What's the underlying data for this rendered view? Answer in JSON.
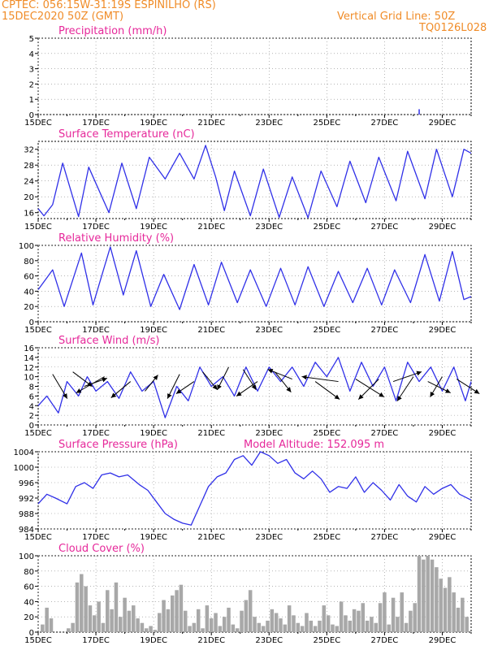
{
  "header": {
    "line1": "CPTEC:   056:15W-31:19S   ESPINILHO (RS)",
    "line2": "15DEC2020 50Z (GMT)",
    "grid_note": "Vertical Grid Line: 50Z",
    "code": "TQ0126L028"
  },
  "colors": {
    "line": "#3030e8",
    "title": "#e6289a",
    "header": "#f08c28",
    "bars": "#a8a8a8"
  },
  "x_ticks": [
    "15DEC",
    "17DEC",
    "19DEC",
    "21DEC",
    "23DEC",
    "25DEC",
    "27DEC",
    "29DEC"
  ],
  "chart_data": [
    {
      "id": "precip",
      "type": "bar",
      "title": "Precipitation (mm/h)",
      "yticks": [
        0,
        1,
        2,
        3,
        4,
        5
      ],
      "ylim": [
        0,
        5
      ],
      "xlim": [
        0,
        15
      ],
      "x": [
        13.2
      ],
      "values": [
        0.35
      ]
    },
    {
      "id": "temp",
      "type": "line",
      "title": "Surface Temperature (nC)",
      "yticks": [
        16,
        20,
        24,
        28,
        32
      ],
      "ylim": [
        14.5,
        34
      ],
      "xlim": [
        0,
        15
      ],
      "series": [
        {
          "x": [
            0,
            0.2,
            0.5,
            0.85,
            1.4,
            1.75,
            2.45,
            2.9,
            3.4,
            3.85,
            4.4,
            4.9,
            5.4,
            5.8,
            6.15,
            6.45,
            6.8,
            7.35,
            7.8,
            8.35,
            8.8,
            9.35,
            9.8,
            10.35,
            10.8,
            11.35,
            11.8,
            12.4,
            12.8,
            13.4,
            13.8,
            14.35,
            14.75,
            15
          ],
          "y": [
            17,
            15.2,
            18,
            28.5,
            15,
            27.5,
            16,
            28.5,
            17,
            30,
            24.5,
            31,
            24.5,
            33,
            25,
            16.5,
            26.5,
            15.2,
            27,
            14.8,
            25,
            14.7,
            26.5,
            17.5,
            29,
            18.5,
            30,
            19,
            31.5,
            19.5,
            32,
            20,
            32,
            31
          ]
        }
      ]
    },
    {
      "id": "rh",
      "type": "line",
      "title": "Relative Humidity (%)",
      "yticks": [
        0,
        20,
        40,
        60,
        80,
        100
      ],
      "ylim": [
        0,
        100
      ],
      "xlim": [
        0,
        15
      ],
      "series": [
        {
          "x": [
            0,
            0.5,
            0.9,
            1.5,
            1.9,
            2.5,
            2.95,
            3.4,
            3.9,
            4.35,
            4.9,
            5.4,
            5.9,
            6.35,
            6.9,
            7.35,
            7.9,
            8.4,
            8.9,
            9.35,
            9.9,
            10.4,
            10.9,
            11.4,
            11.9,
            12.35,
            12.9,
            13.4,
            13.9,
            14.35,
            14.75,
            15
          ],
          "y": [
            42,
            68,
            20,
            90,
            22,
            98,
            35,
            93,
            20,
            62,
            16,
            75,
            22,
            78,
            25,
            68,
            20,
            70,
            22,
            72,
            20,
            66,
            25,
            70,
            22,
            68,
            25,
            88,
            27,
            92,
            29,
            33
          ]
        }
      ]
    },
    {
      "id": "wind",
      "type": "line",
      "title": "Surface Wind (m/s)",
      "yticks": [
        0,
        2,
        4,
        6,
        8,
        10,
        12,
        14,
        16
      ],
      "ylim": [
        0,
        16
      ],
      "xlim": [
        0,
        15
      ],
      "series": [
        {
          "x": [
            0,
            0.3,
            0.7,
            1.0,
            1.4,
            1.7,
            2.0,
            2.4,
            2.8,
            3.2,
            3.6,
            4.0,
            4.4,
            4.8,
            5.2,
            5.6,
            6.0,
            6.4,
            6.8,
            7.2,
            7.6,
            8.0,
            8.4,
            8.8,
            9.2,
            9.6,
            10.0,
            10.4,
            10.8,
            11.2,
            11.6,
            12.0,
            12.4,
            12.8,
            13.2,
            13.6,
            14.0,
            14.4,
            14.8,
            15
          ],
          "y": [
            4,
            6,
            2.5,
            9,
            6,
            10,
            7,
            9,
            5.5,
            11,
            7,
            9,
            1.5,
            8,
            5,
            12,
            8,
            10,
            6,
            12,
            7,
            12,
            9,
            12,
            8,
            13,
            10,
            14,
            7,
            13,
            8,
            12,
            5,
            13,
            9,
            12,
            7,
            12,
            5,
            9
          ]
        }
      ],
      "arrows": [
        {
          "x": 0.5,
          "y": 10.5,
          "dx": 18,
          "dy": 30
        },
        {
          "x": 1.2,
          "y": 11.0,
          "dx": 24,
          "dy": 18
        },
        {
          "x": 1.6,
          "y": 8.0,
          "dx": 28,
          "dy": -10
        },
        {
          "x": 2.3,
          "y": 10.0,
          "dx": -35,
          "dy": 20
        },
        {
          "x": 3.2,
          "y": 9.0,
          "dx": -24,
          "dy": 20
        },
        {
          "x": 3.7,
          "y": 7.0,
          "dx": 16,
          "dy": -20
        },
        {
          "x": 4.9,
          "y": 10.5,
          "dx": -15,
          "dy": 30
        },
        {
          "x": 5.4,
          "y": 9.0,
          "dx": -22,
          "dy": 15
        },
        {
          "x": 5.7,
          "y": 11.0,
          "dx": 18,
          "dy": 22
        },
        {
          "x": 6.6,
          "y": 12.0,
          "dx": -14,
          "dy": 28
        },
        {
          "x": 7.1,
          "y": 11.5,
          "dx": 16,
          "dy": 25
        },
        {
          "x": 7.6,
          "y": 9.0,
          "dx": -26,
          "dy": 18
        },
        {
          "x": 8.2,
          "y": 11.0,
          "dx": 20,
          "dy": 25
        },
        {
          "x": 8.8,
          "y": 9.5,
          "dx": -30,
          "dy": -12
        },
        {
          "x": 9.6,
          "y": 9.0,
          "dx": 30,
          "dy": 22
        },
        {
          "x": 10.4,
          "y": 9.0,
          "dx": -45,
          "dy": -6
        },
        {
          "x": 11.0,
          "y": 9.5,
          "dx": 35,
          "dy": 22
        },
        {
          "x": 11.8,
          "y": 9.5,
          "dx": -25,
          "dy": 25
        },
        {
          "x": 12.3,
          "y": 9.0,
          "dx": 35,
          "dy": -12
        },
        {
          "x": 13.0,
          "y": 10.0,
          "dx": -20,
          "dy": 30
        },
        {
          "x": 13.5,
          "y": 9.0,
          "dx": 28,
          "dy": 14
        },
        {
          "x": 14.0,
          "y": 10.0,
          "dx": -15,
          "dy": 25
        },
        {
          "x": 14.5,
          "y": 9.5,
          "dx": 28,
          "dy": 18
        }
      ]
    },
    {
      "id": "pressure",
      "type": "line",
      "title": "Surface Pressure (hPa)",
      "annotation": "Model Altitude: 152.095 m",
      "yticks": [
        984,
        988,
        992,
        996,
        1000,
        1004
      ],
      "ylim": [
        984,
        1004
      ],
      "xlim": [
        0,
        15
      ],
      "series": [
        {
          "x": [
            0,
            0.3,
            0.6,
            1.0,
            1.3,
            1.6,
            1.9,
            2.2,
            2.5,
            2.8,
            3.1,
            3.5,
            3.8,
            4.1,
            4.4,
            4.7,
            5.0,
            5.3,
            5.6,
            5.9,
            6.2,
            6.5,
            6.8,
            7.1,
            7.4,
            7.7,
            8.0,
            8.3,
            8.6,
            8.9,
            9.2,
            9.5,
            9.8,
            10.1,
            10.4,
            10.7,
            11.0,
            11.3,
            11.6,
            11.9,
            12.2,
            12.5,
            12.8,
            13.1,
            13.4,
            13.7,
            14.0,
            14.3,
            14.6,
            15
          ],
          "y": [
            990.5,
            993,
            992,
            990.5,
            995,
            996,
            994.5,
            998,
            998.5,
            997.5,
            998,
            995.5,
            994,
            991,
            988,
            986.5,
            985.5,
            985,
            990,
            995,
            997.5,
            998.5,
            1002,
            1003,
            1000.5,
            1004,
            1003,
            1001,
            1002,
            998.5,
            997,
            999,
            997,
            993.5,
            995,
            994.5,
            997.5,
            993.5,
            996,
            994,
            991.5,
            995.5,
            992.5,
            991,
            995,
            993,
            994.5,
            995.5,
            993,
            991.5
          ]
        }
      ]
    },
    {
      "id": "cloud",
      "type": "bar",
      "title": "Cloud Cover (%)",
      "yticks": [
        0,
        20,
        40,
        60,
        80,
        100
      ],
      "ylim": [
        0,
        100
      ],
      "xlim": [
        0,
        15
      ],
      "x": [
        0.15,
        0.3,
        0.45,
        1.05,
        1.2,
        1.35,
        1.5,
        1.65,
        1.8,
        1.95,
        2.1,
        2.25,
        2.4,
        2.55,
        2.7,
        2.85,
        3.0,
        3.15,
        3.3,
        3.45,
        3.6,
        3.75,
        3.9,
        4.05,
        4.2,
        4.35,
        4.5,
        4.65,
        4.8,
        4.95,
        5.1,
        5.25,
        5.4,
        5.55,
        5.7,
        5.85,
        6.0,
        6.15,
        6.3,
        6.45,
        6.6,
        6.75,
        6.9,
        7.05,
        7.2,
        7.35,
        7.5,
        7.65,
        7.8,
        7.95,
        8.1,
        8.25,
        8.4,
        8.55,
        8.7,
        8.85,
        9.0,
        9.15,
        9.3,
        9.45,
        9.6,
        9.75,
        9.9,
        10.05,
        10.2,
        10.35,
        10.5,
        10.65,
        10.8,
        10.95,
        11.1,
        11.25,
        11.4,
        11.55,
        11.7,
        11.85,
        12.0,
        12.15,
        12.3,
        12.45,
        12.6,
        12.75,
        12.9,
        13.05,
        13.2,
        13.35,
        13.5,
        13.65,
        13.8,
        13.95,
        14.1,
        14.25,
        14.4,
        14.55,
        14.7,
        14.85
      ],
      "values": [
        10,
        32,
        18,
        5,
        12,
        65,
        76,
        60,
        35,
        22,
        40,
        12,
        55,
        30,
        65,
        20,
        45,
        28,
        35,
        18,
        12,
        5,
        8,
        3,
        25,
        42,
        30,
        48,
        55,
        62,
        28,
        8,
        12,
        30,
        5,
        35,
        18,
        25,
        8,
        20,
        32,
        10,
        5,
        28,
        42,
        55,
        20,
        12,
        8,
        15,
        30,
        25,
        18,
        10,
        35,
        22,
        12,
        8,
        25,
        15,
        8,
        15,
        35,
        22,
        10,
        8,
        40,
        22,
        15,
        30,
        28,
        38,
        15,
        20,
        12,
        38,
        52,
        10,
        45,
        20,
        52,
        12,
        28,
        38,
        100,
        95,
        100,
        95,
        85,
        70,
        58,
        72,
        52,
        32,
        45,
        20
      ]
    }
  ]
}
